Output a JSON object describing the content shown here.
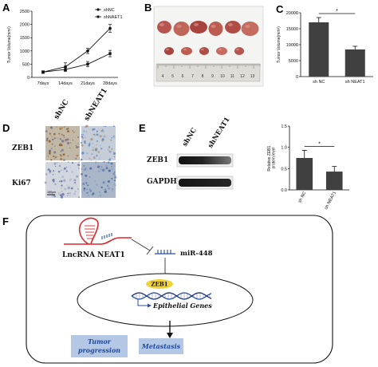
{
  "panels": {
    "a": "A",
    "b": "B",
    "c": "C",
    "d": "D",
    "e": "E",
    "f": "F"
  },
  "colors": {
    "bar_fill": "#404040",
    "line_series": "#111111",
    "zeb1_highlight": "#f2d33a",
    "rna_red": "#d9262b",
    "rna_blue": "#2b4fa6",
    "box_fill": "#b4c8e6",
    "box_text": "#1f4aa0"
  },
  "chart_data": [
    {
      "panel": "A",
      "type": "line",
      "x": [
        "7days",
        "14days",
        "21days",
        "28days"
      ],
      "ylabel": "Tumor Volume(mm³)",
      "ylim": [
        0,
        2500
      ],
      "yticks": [
        "0",
        "500",
        "1000",
        "1500",
        "2000",
        "2500"
      ],
      "legend": "top-left",
      "series": [
        {
          "name": "shNC",
          "marker": "circle",
          "values": [
            200,
            400,
            1000,
            1850
          ],
          "errors": [
            50,
            150,
            100,
            150
          ]
        },
        {
          "name": "shNAET1",
          "marker": "square",
          "values": [
            200,
            300,
            500,
            900
          ],
          "errors": [
            40,
            80,
            100,
            120
          ]
        }
      ]
    },
    {
      "panel": "C",
      "type": "bar",
      "categories": [
        "sh NC",
        "sh NEAT1"
      ],
      "values": [
        17000,
        8500
      ],
      "errors": [
        1500,
        1000
      ],
      "ylabel": "Tumor Volume(mm³)",
      "ylim": [
        0,
        20000
      ],
      "yticks": [
        "0",
        "5000",
        "10000",
        "15000",
        "20000"
      ],
      "significance": "*"
    },
    {
      "panel": "E",
      "type": "bar",
      "categories": [
        "sh NC",
        "sh NEAT1"
      ],
      "values": [
        0.75,
        0.43
      ],
      "errors": [
        0.18,
        0.12
      ],
      "ylabel": "Relative ZEB1 protein level",
      "ylim": [
        0,
        1.5
      ],
      "yticks": [
        "0.0",
        "0.5",
        "1.0",
        "1.5"
      ],
      "significance": "*"
    }
  ],
  "panel_b": {
    "ruler_numbers": [
      "4",
      "5",
      "6",
      "7",
      "8",
      "9",
      "10",
      "11",
      "12",
      "13"
    ],
    "top_row_tumors": 6,
    "bottom_row_tumors": 5
  },
  "panel_d": {
    "col_labels": [
      "shNC",
      "shNEAT1"
    ],
    "row_labels": [
      "ZEB1",
      "Ki67"
    ],
    "scale_bar": "100μm"
  },
  "panel_e_blot": {
    "col_labels": [
      "shNC",
      "shNEAT1"
    ],
    "row_labels": [
      "ZEB1",
      "GAPDH"
    ]
  },
  "panel_f": {
    "lncrna_label": "LncRNA NEAT1",
    "mirna_label": "miR-448",
    "zeb1_label": "ZEB1",
    "genes_label": "Epithelial Genes",
    "box1_line1": "Tumor",
    "box1_line2": "progression",
    "box2_label": "Metastasis"
  }
}
